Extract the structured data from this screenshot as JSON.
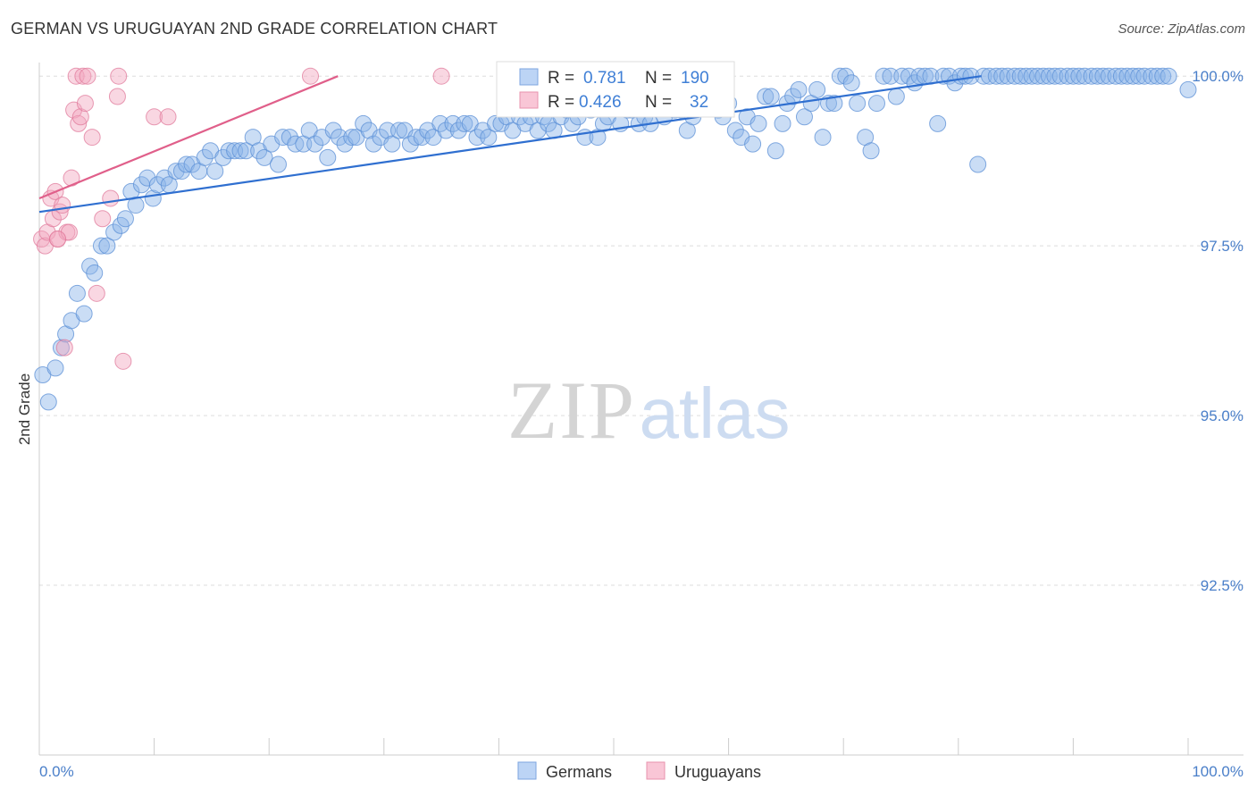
{
  "title": "GERMAN VS URUGUAYAN 2ND GRADE CORRELATION CHART",
  "source": "Source: ZipAtlas.com",
  "watermark": {
    "zip": "ZIP",
    "atlas": "atlas"
  },
  "chart_data": {
    "type": "scatter",
    "xlabel": "",
    "ylabel": "2nd Grade",
    "xlim": [
      0,
      100
    ],
    "ylim": [
      90.0,
      100.2
    ],
    "x_tick_labels": [
      "0.0%",
      "100.0%"
    ],
    "y_ticks": [
      92.5,
      95.0,
      97.5,
      100.0
    ],
    "y_tick_labels": [
      "92.5%",
      "95.0%",
      "97.5%",
      "100.0%"
    ],
    "grid": true,
    "legend": {
      "position": "bottom-center",
      "entries": [
        "Germans",
        "Uruguayans"
      ]
    },
    "stats_box": {
      "position": "top-center",
      "rows": [
        {
          "r_label": "R =",
          "r": "0.781",
          "n_label": "N =",
          "n": "190"
        },
        {
          "r_label": "R =",
          "r": "0.426",
          "n_label": "N =",
          "n": "32"
        }
      ]
    },
    "series": [
      {
        "name": "Germans",
        "color": "#8ab4e8",
        "edge": "#5b8fd6",
        "line_color": "#2f6fd0",
        "trend": {
          "x": [
            0,
            82
          ],
          "y": [
            98.0,
            100.0
          ]
        },
        "points": [
          [
            0.3,
            95.6
          ],
          [
            0.8,
            95.2
          ],
          [
            1.4,
            95.7
          ],
          [
            1.9,
            96.0
          ],
          [
            2.3,
            96.2
          ],
          [
            2.8,
            96.4
          ],
          [
            3.3,
            96.8
          ],
          [
            3.9,
            96.5
          ],
          [
            4.4,
            97.2
          ],
          [
            4.8,
            97.1
          ],
          [
            5.4,
            97.5
          ],
          [
            5.9,
            97.5
          ],
          [
            6.5,
            97.7
          ],
          [
            7.1,
            97.8
          ],
          [
            7.5,
            97.9
          ],
          [
            8.0,
            98.3
          ],
          [
            8.4,
            98.1
          ],
          [
            8.9,
            98.4
          ],
          [
            9.4,
            98.5
          ],
          [
            9.9,
            98.2
          ],
          [
            10.3,
            98.4
          ],
          [
            10.9,
            98.5
          ],
          [
            11.3,
            98.4
          ],
          [
            11.9,
            98.6
          ],
          [
            12.4,
            98.6
          ],
          [
            12.8,
            98.7
          ],
          [
            13.3,
            98.7
          ],
          [
            13.9,
            98.6
          ],
          [
            14.4,
            98.8
          ],
          [
            14.9,
            98.9
          ],
          [
            15.3,
            98.6
          ],
          [
            16.0,
            98.8
          ],
          [
            16.5,
            98.9
          ],
          [
            17.0,
            98.9
          ],
          [
            17.5,
            98.9
          ],
          [
            18.0,
            98.9
          ],
          [
            18.6,
            99.1
          ],
          [
            19.1,
            98.9
          ],
          [
            19.6,
            98.8
          ],
          [
            20.2,
            99.0
          ],
          [
            20.8,
            98.7
          ],
          [
            21.2,
            99.1
          ],
          [
            21.8,
            99.1
          ],
          [
            22.3,
            99.0
          ],
          [
            23.0,
            99.0
          ],
          [
            23.5,
            99.2
          ],
          [
            24.0,
            99.0
          ],
          [
            24.6,
            99.1
          ],
          [
            25.1,
            98.8
          ],
          [
            25.6,
            99.2
          ],
          [
            26.1,
            99.1
          ],
          [
            26.6,
            99.0
          ],
          [
            27.2,
            99.1
          ],
          [
            27.6,
            99.1
          ],
          [
            28.2,
            99.3
          ],
          [
            28.7,
            99.2
          ],
          [
            29.1,
            99.0
          ],
          [
            29.7,
            99.1
          ],
          [
            30.3,
            99.2
          ],
          [
            30.7,
            99.0
          ],
          [
            31.3,
            99.2
          ],
          [
            31.8,
            99.2
          ],
          [
            32.3,
            99.0
          ],
          [
            32.8,
            99.1
          ],
          [
            33.3,
            99.1
          ],
          [
            33.8,
            99.2
          ],
          [
            34.3,
            99.1
          ],
          [
            34.9,
            99.3
          ],
          [
            35.4,
            99.2
          ],
          [
            36.0,
            99.3
          ],
          [
            36.5,
            99.2
          ],
          [
            37.0,
            99.3
          ],
          [
            37.5,
            99.3
          ],
          [
            38.1,
            99.1
          ],
          [
            38.6,
            99.2
          ],
          [
            39.1,
            99.1
          ],
          [
            39.7,
            99.3
          ],
          [
            40.2,
            99.3
          ],
          [
            40.7,
            99.4
          ],
          [
            41.2,
            99.2
          ],
          [
            41.8,
            99.4
          ],
          [
            42.3,
            99.3
          ],
          [
            42.8,
            99.4
          ],
          [
            43.4,
            99.2
          ],
          [
            43.9,
            99.4
          ],
          [
            44.3,
            99.3
          ],
          [
            44.8,
            99.2
          ],
          [
            45.4,
            99.4
          ],
          [
            45.9,
            99.5
          ],
          [
            46.4,
            99.3
          ],
          [
            46.9,
            99.4
          ],
          [
            47.5,
            99.1
          ],
          [
            48.0,
            99.5
          ],
          [
            48.6,
            99.1
          ],
          [
            49.1,
            99.3
          ],
          [
            49.5,
            99.4
          ],
          [
            50.1,
            99.6
          ],
          [
            50.6,
            99.3
          ],
          [
            51.2,
            99.5
          ],
          [
            51.6,
            99.5
          ],
          [
            52.2,
            99.3
          ],
          [
            52.7,
            99.4
          ],
          [
            53.2,
            99.3
          ],
          [
            53.8,
            99.6
          ],
          [
            54.4,
            99.4
          ],
          [
            54.8,
            99.6
          ],
          [
            55.3,
            99.5
          ],
          [
            55.9,
            99.5
          ],
          [
            56.4,
            99.2
          ],
          [
            56.9,
            99.4
          ],
          [
            57.4,
            99.6
          ],
          [
            58.0,
            99.6
          ],
          [
            58.5,
            99.6
          ],
          [
            59.1,
            99.5
          ],
          [
            59.5,
            99.4
          ],
          [
            60.0,
            99.6
          ],
          [
            60.6,
            99.2
          ],
          [
            61.1,
            99.1
          ],
          [
            61.6,
            99.4
          ],
          [
            62.1,
            99.0
          ],
          [
            62.6,
            99.3
          ],
          [
            63.2,
            99.7
          ],
          [
            63.7,
            99.7
          ],
          [
            64.1,
            98.9
          ],
          [
            64.7,
            99.3
          ],
          [
            65.1,
            99.6
          ],
          [
            65.6,
            99.7
          ],
          [
            66.1,
            99.8
          ],
          [
            66.6,
            99.4
          ],
          [
            67.2,
            99.6
          ],
          [
            67.7,
            99.8
          ],
          [
            68.2,
            99.1
          ],
          [
            68.7,
            99.6
          ],
          [
            69.2,
            99.6
          ],
          [
            69.7,
            100.0
          ],
          [
            70.2,
            100.0
          ],
          [
            70.7,
            99.9
          ],
          [
            71.2,
            99.6
          ],
          [
            71.9,
            99.1
          ],
          [
            72.4,
            98.9
          ],
          [
            72.9,
            99.6
          ],
          [
            73.5,
            100.0
          ],
          [
            74.1,
            100.0
          ],
          [
            74.6,
            99.7
          ],
          [
            75.1,
            100.0
          ],
          [
            75.7,
            100.0
          ],
          [
            76.2,
            99.9
          ],
          [
            76.6,
            100.0
          ],
          [
            77.1,
            100.0
          ],
          [
            77.6,
            100.0
          ],
          [
            78.2,
            99.3
          ],
          [
            78.7,
            100.0
          ],
          [
            79.2,
            100.0
          ],
          [
            79.7,
            99.9
          ],
          [
            80.2,
            100.0
          ],
          [
            80.6,
            100.0
          ],
          [
            81.1,
            100.0
          ],
          [
            81.7,
            98.7
          ],
          [
            82.2,
            100.0
          ],
          [
            82.7,
            100.0
          ],
          [
            83.3,
            100.0
          ],
          [
            83.8,
            100.0
          ],
          [
            84.3,
            100.0
          ],
          [
            84.9,
            100.0
          ],
          [
            85.4,
            100.0
          ],
          [
            85.9,
            100.0
          ],
          [
            86.4,
            100.0
          ],
          [
            86.9,
            100.0
          ],
          [
            87.4,
            100.0
          ],
          [
            87.9,
            100.0
          ],
          [
            88.4,
            100.0
          ],
          [
            88.9,
            100.0
          ],
          [
            89.5,
            100.0
          ],
          [
            90.0,
            100.0
          ],
          [
            90.5,
            100.0
          ],
          [
            91.0,
            100.0
          ],
          [
            91.6,
            100.0
          ],
          [
            92.1,
            100.0
          ],
          [
            92.6,
            100.0
          ],
          [
            93.1,
            100.0
          ],
          [
            93.7,
            100.0
          ],
          [
            94.2,
            100.0
          ],
          [
            94.7,
            100.0
          ],
          [
            95.2,
            100.0
          ],
          [
            95.7,
            100.0
          ],
          [
            96.2,
            100.0
          ],
          [
            96.8,
            100.0
          ],
          [
            97.3,
            100.0
          ],
          [
            97.8,
            100.0
          ],
          [
            98.3,
            100.0
          ],
          [
            100.0,
            99.8
          ]
        ]
      },
      {
        "name": "Uruguayans",
        "color": "#f2a7bf",
        "edge": "#e07a9b",
        "line_color": "#e05f8a",
        "trend": {
          "x": [
            0,
            26
          ],
          "y": [
            98.2,
            100.0
          ]
        },
        "points": [
          [
            0.2,
            97.6
          ],
          [
            0.5,
            97.5
          ],
          [
            0.7,
            97.7
          ],
          [
            1.0,
            98.2
          ],
          [
            1.2,
            97.9
          ],
          [
            1.4,
            98.3
          ],
          [
            1.6,
            97.6
          ],
          [
            1.8,
            98.0
          ],
          [
            2.0,
            98.1
          ],
          [
            2.2,
            96.0
          ],
          [
            2.4,
            97.7
          ],
          [
            2.6,
            97.7
          ],
          [
            2.8,
            98.5
          ],
          [
            3.0,
            99.5
          ],
          [
            3.2,
            100.0
          ],
          [
            3.4,
            99.3
          ],
          [
            3.6,
            99.4
          ],
          [
            3.8,
            100.0
          ],
          [
            4.0,
            99.6
          ],
          [
            4.2,
            100.0
          ],
          [
            4.6,
            99.1
          ],
          [
            5.0,
            96.8
          ],
          [
            5.5,
            97.9
          ],
          [
            6.2,
            98.2
          ],
          [
            6.8,
            99.7
          ],
          [
            6.9,
            100.0
          ],
          [
            7.3,
            95.8
          ],
          [
            10.0,
            99.4
          ],
          [
            11.2,
            99.4
          ],
          [
            23.6,
            100.0
          ],
          [
            35.0,
            100.0
          ],
          [
            1.6,
            97.6
          ]
        ]
      }
    ]
  }
}
